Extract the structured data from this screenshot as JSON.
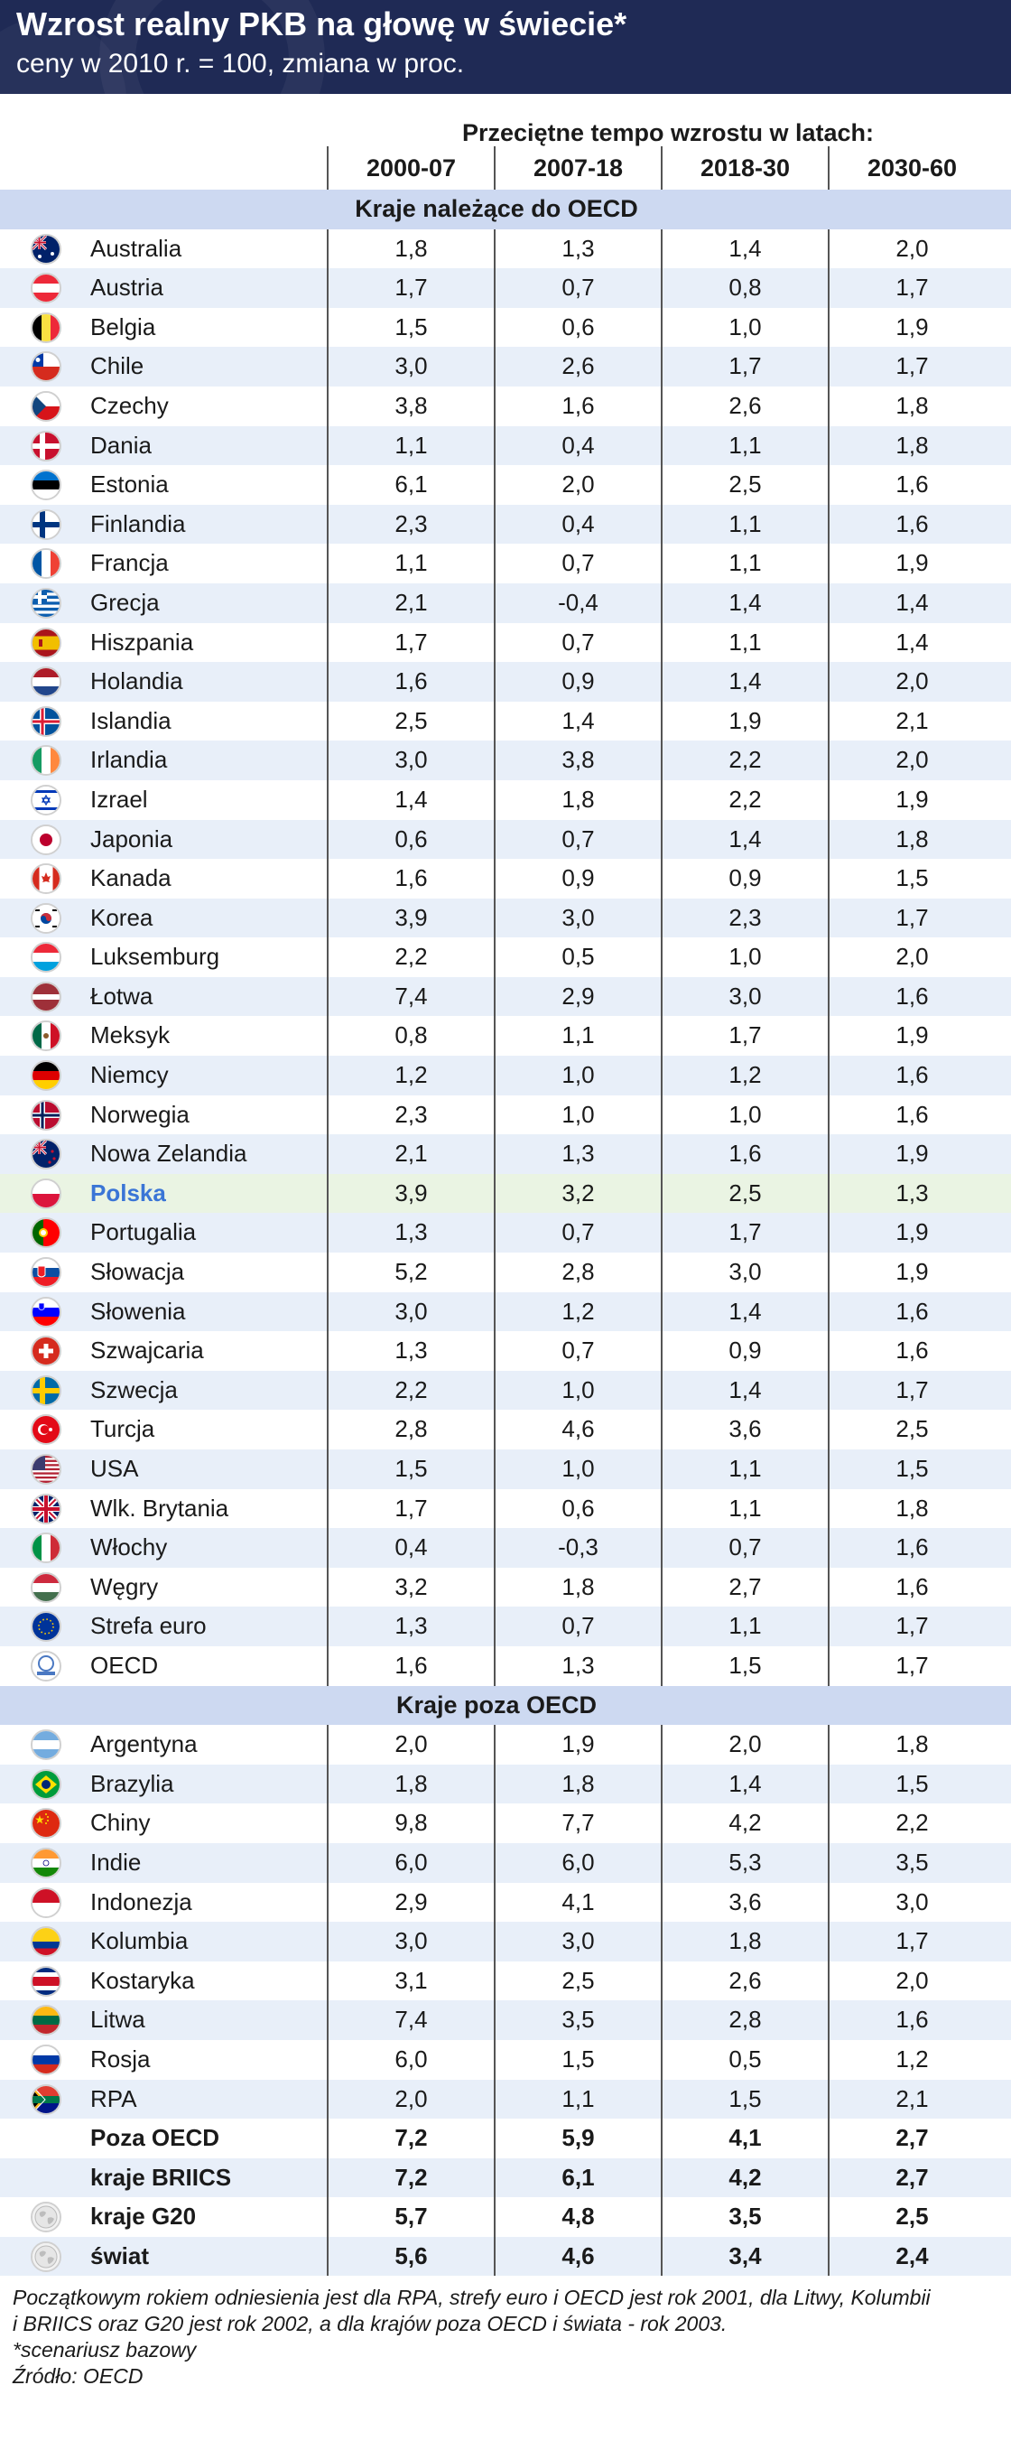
{
  "title": "Wzrost realny PKB na głowę w świecie*",
  "subtitle": "ceny w 2010 r. = 100, zmiana w proc.",
  "chart_data": {
    "type": "table",
    "super_header": "Przeciętne tempo wzrostu w latach:",
    "columns": [
      "2000-07",
      "2007-18",
      "2018-30",
      "2030-60"
    ],
    "sections": [
      {
        "label": "Kraje należące do OECD",
        "rows": [
          {
            "name": "Australia",
            "flag": "australia-flag-icon",
            "values": [
              "1,8",
              "1,3",
              "1,4",
              "2,0"
            ]
          },
          {
            "name": "Austria",
            "flag": "austria-flag-icon",
            "values": [
              "1,7",
              "0,7",
              "0,8",
              "1,7"
            ]
          },
          {
            "name": "Belgia",
            "flag": "belgium-flag-icon",
            "values": [
              "1,5",
              "0,6",
              "1,0",
              "1,9"
            ]
          },
          {
            "name": "Chile",
            "flag": "chile-flag-icon",
            "values": [
              "3,0",
              "2,6",
              "1,7",
              "1,7"
            ]
          },
          {
            "name": "Czechy",
            "flag": "czechia-flag-icon",
            "values": [
              "3,8",
              "1,6",
              "2,6",
              "1,8"
            ]
          },
          {
            "name": "Dania",
            "flag": "denmark-flag-icon",
            "values": [
              "1,1",
              "0,4",
              "1,1",
              "1,8"
            ]
          },
          {
            "name": "Estonia",
            "flag": "estonia-flag-icon",
            "values": [
              "6,1",
              "2,0",
              "2,5",
              "1,6"
            ]
          },
          {
            "name": "Finlandia",
            "flag": "finland-flag-icon",
            "values": [
              "2,3",
              "0,4",
              "1,1",
              "1,6"
            ]
          },
          {
            "name": "Francja",
            "flag": "france-flag-icon",
            "values": [
              "1,1",
              "0,7",
              "1,1",
              "1,9"
            ]
          },
          {
            "name": "Grecja",
            "flag": "greece-flag-icon",
            "values": [
              "2,1",
              "-0,4",
              "1,4",
              "1,4"
            ]
          },
          {
            "name": "Hiszpania",
            "flag": "spain-flag-icon",
            "values": [
              "1,7",
              "0,7",
              "1,1",
              "1,4"
            ]
          },
          {
            "name": "Holandia",
            "flag": "netherlands-flag-icon",
            "values": [
              "1,6",
              "0,9",
              "1,4",
              "2,0"
            ]
          },
          {
            "name": "Islandia",
            "flag": "iceland-flag-icon",
            "values": [
              "2,5",
              "1,4",
              "1,9",
              "2,1"
            ]
          },
          {
            "name": "Irlandia",
            "flag": "ireland-flag-icon",
            "values": [
              "3,0",
              "3,8",
              "2,2",
              "2,0"
            ]
          },
          {
            "name": "Izrael",
            "flag": "israel-flag-icon",
            "values": [
              "1,4",
              "1,8",
              "2,2",
              "1,9"
            ]
          },
          {
            "name": "Japonia",
            "flag": "japan-flag-icon",
            "values": [
              "0,6",
              "0,7",
              "1,4",
              "1,8"
            ]
          },
          {
            "name": "Kanada",
            "flag": "canada-flag-icon",
            "values": [
              "1,6",
              "0,9",
              "0,9",
              "1,5"
            ]
          },
          {
            "name": "Korea",
            "flag": "korea-flag-icon",
            "values": [
              "3,9",
              "3,0",
              "2,3",
              "1,7"
            ]
          },
          {
            "name": "Luksemburg",
            "flag": "luxembourg-flag-icon",
            "values": [
              "2,2",
              "0,5",
              "1,0",
              "2,0"
            ]
          },
          {
            "name": "Łotwa",
            "flag": "latvia-flag-icon",
            "values": [
              "7,4",
              "2,9",
              "3,0",
              "1,6"
            ]
          },
          {
            "name": "Meksyk",
            "flag": "mexico-flag-icon",
            "values": [
              "0,8",
              "1,1",
              "1,7",
              "1,9"
            ]
          },
          {
            "name": "Niemcy",
            "flag": "germany-flag-icon",
            "values": [
              "1,2",
              "1,0",
              "1,2",
              "1,6"
            ]
          },
          {
            "name": "Norwegia",
            "flag": "norway-flag-icon",
            "values": [
              "2,3",
              "1,0",
              "1,0",
              "1,6"
            ]
          },
          {
            "name": "Nowa Zelandia",
            "flag": "new-zealand-flag-icon",
            "values": [
              "2,1",
              "1,3",
              "1,6",
              "1,9"
            ]
          },
          {
            "name": "Polska",
            "flag": "poland-flag-icon",
            "values": [
              "3,9",
              "3,2",
              "2,5",
              "1,3"
            ],
            "highlight": true
          },
          {
            "name": "Portugalia",
            "flag": "portugal-flag-icon",
            "values": [
              "1,3",
              "0,7",
              "1,7",
              "1,9"
            ]
          },
          {
            "name": "Słowacja",
            "flag": "slovakia-flag-icon",
            "values": [
              "5,2",
              "2,8",
              "3,0",
              "1,9"
            ]
          },
          {
            "name": "Słowenia",
            "flag": "slovenia-flag-icon",
            "values": [
              "3,0",
              "1,2",
              "1,4",
              "1,6"
            ]
          },
          {
            "name": "Szwajcaria",
            "flag": "switzerland-flag-icon",
            "values": [
              "1,3",
              "0,7",
              "0,9",
              "1,6"
            ]
          },
          {
            "name": "Szwecja",
            "flag": "sweden-flag-icon",
            "values": [
              "2,2",
              "1,0",
              "1,4",
              "1,7"
            ]
          },
          {
            "name": "Turcja",
            "flag": "turkey-flag-icon",
            "values": [
              "2,8",
              "4,6",
              "3,6",
              "2,5"
            ]
          },
          {
            "name": "USA",
            "flag": "usa-flag-icon",
            "values": [
              "1,5",
              "1,0",
              "1,1",
              "1,5"
            ]
          },
          {
            "name": "Wlk. Brytania",
            "flag": "uk-flag-icon",
            "values": [
              "1,7",
              "0,6",
              "1,1",
              "1,8"
            ]
          },
          {
            "name": "Włochy",
            "flag": "italy-flag-icon",
            "values": [
              "0,4",
              "-0,3",
              "0,7",
              "1,6"
            ]
          },
          {
            "name": "Węgry",
            "flag": "hungary-flag-icon",
            "values": [
              "3,2",
              "1,8",
              "2,7",
              "1,6"
            ]
          },
          {
            "name": "Strefa euro",
            "flag": "eu-flag-icon",
            "values": [
              "1,3",
              "0,7",
              "1,1",
              "1,7"
            ]
          },
          {
            "name": "OECD",
            "flag": "oecd-logo-icon",
            "values": [
              "1,6",
              "1,3",
              "1,5",
              "1,7"
            ]
          }
        ]
      },
      {
        "label": "Kraje poza OECD",
        "rows": [
          {
            "name": "Argentyna",
            "flag": "argentina-flag-icon",
            "values": [
              "2,0",
              "1,9",
              "2,0",
              "1,8"
            ]
          },
          {
            "name": "Brazylia",
            "flag": "brazil-flag-icon",
            "values": [
              "1,8",
              "1,8",
              "1,4",
              "1,5"
            ]
          },
          {
            "name": "Chiny",
            "flag": "china-flag-icon",
            "values": [
              "9,8",
              "7,7",
              "4,2",
              "2,2"
            ]
          },
          {
            "name": "Indie",
            "flag": "india-flag-icon",
            "values": [
              "6,0",
              "6,0",
              "5,3",
              "3,5"
            ]
          },
          {
            "name": "Indonezja",
            "flag": "indonesia-flag-icon",
            "values": [
              "2,9",
              "4,1",
              "3,6",
              "3,0"
            ]
          },
          {
            "name": "Kolumbia",
            "flag": "colombia-flag-icon",
            "values": [
              "3,0",
              "3,0",
              "1,8",
              "1,7"
            ]
          },
          {
            "name": "Kostaryka",
            "flag": "costa-rica-flag-icon",
            "values": [
              "3,1",
              "2,5",
              "2,6",
              "2,0"
            ]
          },
          {
            "name": "Litwa",
            "flag": "lithuania-flag-icon",
            "values": [
              "7,4",
              "3,5",
              "2,8",
              "1,6"
            ]
          },
          {
            "name": "Rosja",
            "flag": "russia-flag-icon",
            "values": [
              "6,0",
              "1,5",
              "0,5",
              "1,2"
            ]
          },
          {
            "name": "RPA",
            "flag": "south-africa-flag-icon",
            "values": [
              "2,0",
              "1,1",
              "1,5",
              "2,1"
            ]
          },
          {
            "name": "Poza OECD",
            "flag": "",
            "values": [
              "7,2",
              "5,9",
              "4,1",
              "2,7"
            ],
            "bold": true
          },
          {
            "name": "kraje BRIICS",
            "flag": "",
            "values": [
              "7,2",
              "6,1",
              "4,2",
              "2,7"
            ],
            "bold": true
          },
          {
            "name": "kraje G20",
            "flag": "globe-icon",
            "values": [
              "5,7",
              "4,8",
              "3,5",
              "2,5"
            ],
            "bold": true
          },
          {
            "name": "świat",
            "flag": "globe-icon",
            "values": [
              "5,6",
              "4,6",
              "3,4",
              "2,4"
            ],
            "bold": true
          }
        ]
      }
    ]
  },
  "footnote": {
    "line1": "Początkowym rokiem odniesienia jest dla RPA, strefy euro i OECD jest rok 2001, dla Litwy, Kolumbii",
    "line2": "i BRIICS oraz G20 jest rok 2002, a dla krajów poza OECD i świata - rok 2003.",
    "line3": "*scenariusz bazowy",
    "line4": "Źródło: OECD"
  },
  "colors": {
    "header_bg": "#1f2a55",
    "row_alt": "#e8eff9",
    "section_bg": "#cdd9f1",
    "highlight_bg": "#eaf4e3",
    "highlight_text": "#3a75d6"
  }
}
